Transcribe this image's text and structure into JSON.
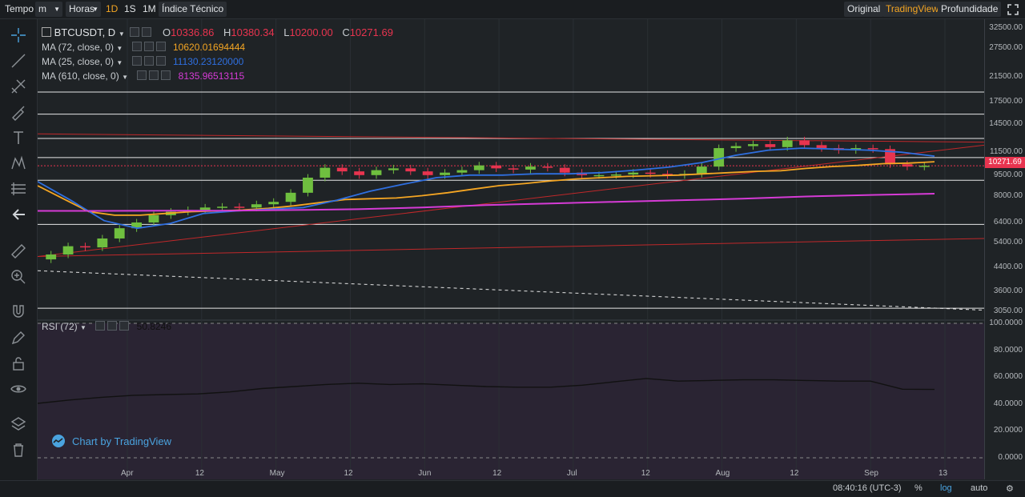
{
  "toolbar": {
    "tempo": "Tempo",
    "interval_value": "m",
    "horas": "Horas",
    "btn_1d": "1D",
    "btn_1s": "1S",
    "btn_1m": "1M",
    "indice": "Índice Técnico",
    "original": "Original",
    "tradingview": "TradingView",
    "profundidade": "Profundidade"
  },
  "legend": {
    "symbol": "BTCUSDT, D",
    "open_label": "O",
    "open": "10336.86",
    "high_label": "H",
    "high": "10380.34",
    "low_label": "L",
    "low": "10200.00",
    "close_label": "C",
    "close": "10271.69",
    "ma72_label": "MA (72, close, 0)",
    "ma72_value": "10620.01694444",
    "ma25_label": "MA (25, close, 0)",
    "ma25_value": "11130.23120000",
    "ma610_label": "MA (610, close, 0)",
    "ma610_value": "8135.96513115",
    "rsi_label": "RSI (72)",
    "rsi_value": "50.8246"
  },
  "colors": {
    "up": "#6fbf3f",
    "down": "#e8344f",
    "ma72": "#f5a623",
    "ma25": "#2f6fe0",
    "ma610": "#d63bd6",
    "rsi": "#111111",
    "trend": "#c0282a",
    "accent": "#f5a623"
  },
  "watermark": "Chart by TradingView",
  "bottom": {
    "time": "08:40:16 (UTC-3)",
    "percent": "%",
    "log": "log",
    "auto": "auto"
  },
  "price_tag": "10271.69",
  "chart_data": {
    "type": "candlestick",
    "title": "BTCUSDT, D",
    "yscale": "log",
    "ylim": [
      2950,
      33500
    ],
    "y_ticks": [
      "32500.00",
      "27500.00",
      "21500.00",
      "17500.00",
      "14500.00",
      "11500.00",
      "9500.00",
      "8000.00",
      "6400.00",
      "5400.00",
      "4400.00",
      "3600.00",
      "3050.00"
    ],
    "x_ticks": [
      "Apr",
      "12",
      "May",
      "12",
      "Jun",
      "12",
      "Jul",
      "12",
      "Aug",
      "12",
      "Sep",
      "13"
    ],
    "close_series": [
      4900,
      5250,
      5200,
      5600,
      6100,
      6400,
      6800,
      7000,
      7100,
      7250,
      7300,
      7250,
      7450,
      7600,
      8200,
      9300,
      10100,
      9800,
      9500,
      9900,
      10050,
      9800,
      9500,
      9700,
      9900,
      10300,
      10050,
      9950,
      10200,
      10100,
      9700,
      9500,
      9500,
      9550,
      9700,
      9600,
      9500,
      9600,
      10200,
      11900,
      12100,
      12300,
      12000,
      12700,
      12200,
      11900,
      11700,
      11900,
      11800,
      10400,
      10200,
      10271.69
    ],
    "ma72": [
      8700,
      7800,
      7000,
      6800,
      6800,
      6900,
      7000,
      7050,
      7100,
      7200,
      7350,
      7550,
      7750,
      7800,
      7850,
      8000,
      8200,
      8450,
      8700,
      8850,
      9050,
      9200,
      9300,
      9400,
      9450,
      9500,
      9600,
      9700,
      9800,
      9850,
      10050,
      10200,
      10300,
      10450,
      10500,
      10620.01694444
    ],
    "ma25": [
      9000,
      7700,
      6500,
      6100,
      6350,
      6900,
      7050,
      7150,
      7250,
      7700,
      8300,
      8800,
      9300,
      9500,
      9500,
      9600,
      9600,
      9700,
      9900,
      10150,
      10550,
      11200,
      11700,
      11900,
      11800,
      11700,
      11500,
      11130.2312
    ],
    "ma610": [
      7050,
      7050,
      7060,
      7060,
      7100,
      7150,
      7250,
      7400,
      7500,
      7600,
      7700,
      7800,
      7950,
      8050,
      8135.96513115
    ],
    "rsi": [
      40.5,
      43,
      45,
      46.5,
      47,
      47.5,
      49,
      51.5,
      53,
      54.5,
      55.5,
      54.5,
      55,
      54,
      53,
      52.5,
      52.5,
      54,
      56.5,
      59,
      57,
      57.5,
      58,
      58,
      57.5,
      57,
      57,
      51,
      50.8246
    ],
    "rsi_ylim": [
      0,
      100
    ],
    "rsi_ticks": [
      "100.0000",
      "80.0000",
      "60.0000",
      "40.0000",
      "20.0000",
      "0.0000"
    ],
    "hlines": [
      19000,
      15800,
      12900,
      11000,
      9100,
      6300,
      3130
    ],
    "trendlines": [
      {
        "from": [
          0,
          13400
        ],
        "to": [
          1,
          12500
        ]
      },
      {
        "from": [
          0,
          4820
        ],
        "to": [
          1,
          12200
        ]
      },
      {
        "from": [
          0,
          4820
        ],
        "to": [
          1,
          5600
        ]
      },
      {
        "from": [
          0,
          4280
        ],
        "to": [
          1,
          3080
        ],
        "dashed": true
      }
    ]
  }
}
